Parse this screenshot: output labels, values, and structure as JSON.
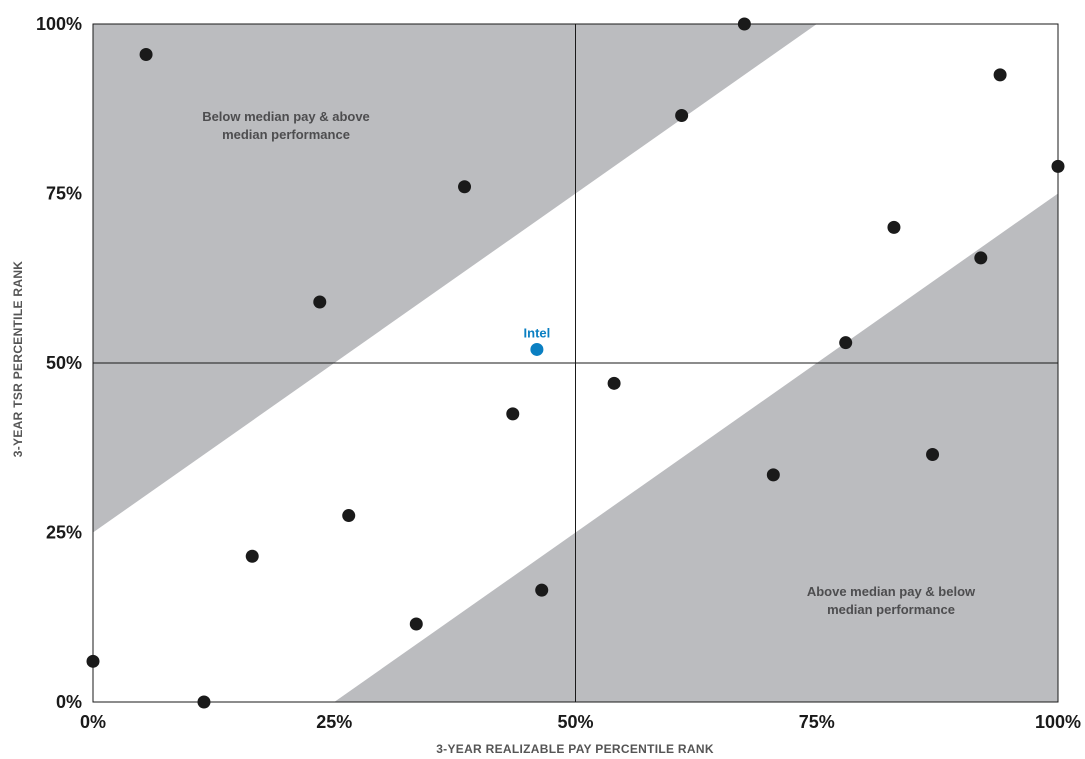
{
  "chart_data": {
    "type": "scatter",
    "xlabel": "3-YEAR REALIZABLE PAY PERCENTILE  RANK",
    "ylabel": "3-YEAR TSR PERCENTILE RANK",
    "xlim": [
      0,
      100
    ],
    "ylim": [
      0,
      100
    ],
    "x_ticks": [
      "0%",
      "50%",
      "25%",
      "75%",
      "100%"
    ],
    "x_tick_values": [
      0,
      50,
      25,
      75,
      100
    ],
    "y_ticks": [
      "0%",
      "25%",
      "50%",
      "75%",
      "100%"
    ],
    "y_tick_values": [
      0,
      25,
      50,
      75,
      100
    ],
    "median_lines": {
      "x": 50,
      "y": 50
    },
    "alignment_band": {
      "lower_offset": -25,
      "upper_offset": 25
    },
    "zone_labels": {
      "upper_left": [
        "Below median pay & above",
        "median performance"
      ],
      "lower_right": [
        "Above median pay & below",
        "median performance"
      ]
    },
    "points": [
      {
        "x": 0,
        "y": 6
      },
      {
        "x": 5.5,
        "y": 95.5
      },
      {
        "x": 11.5,
        "y": 0
      },
      {
        "x": 16.5,
        "y": 21.5
      },
      {
        "x": 23.5,
        "y": 59
      },
      {
        "x": 26.5,
        "y": 27.5
      },
      {
        "x": 33.5,
        "y": 11.5
      },
      {
        "x": 38.5,
        "y": 76
      },
      {
        "x": 43.5,
        "y": 42.5
      },
      {
        "x": 46.5,
        "y": 16.5
      },
      {
        "x": 54,
        "y": 47
      },
      {
        "x": 61,
        "y": 86.5
      },
      {
        "x": 67.5,
        "y": 100
      },
      {
        "x": 70.5,
        "y": 33.5
      },
      {
        "x": 78,
        "y": 53
      },
      {
        "x": 83,
        "y": 70
      },
      {
        "x": 87,
        "y": 36.5
      },
      {
        "x": 92,
        "y": 65.5
      },
      {
        "x": 94,
        "y": 92.5
      },
      {
        "x": 100,
        "y": 79
      }
    ],
    "highlight": {
      "label": "Intel",
      "x": 46,
      "y": 52,
      "color": "#0a7fc2"
    },
    "colors": {
      "band": "#bbbcbf",
      "point": "#1a1a1a",
      "line": "#1a1a1a"
    }
  }
}
